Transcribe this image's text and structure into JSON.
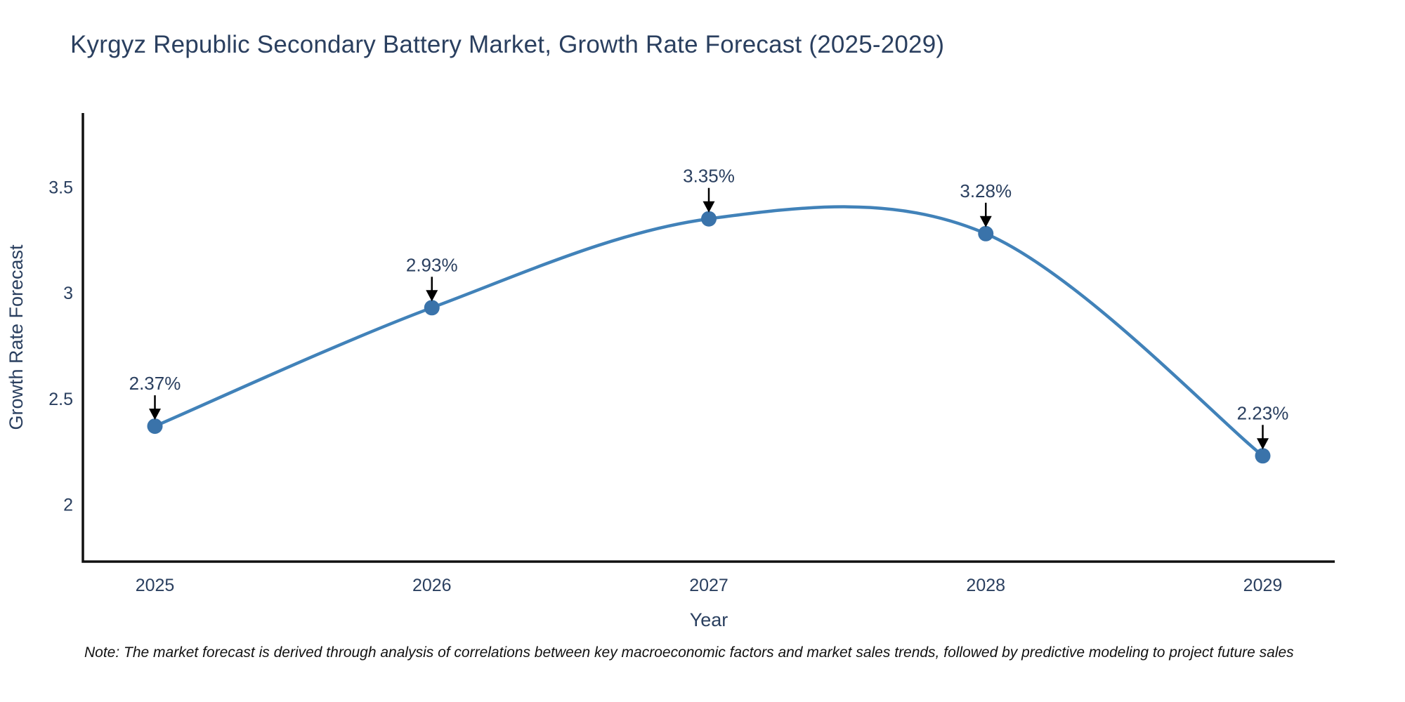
{
  "note": "Note: The market forecast is derived through analysis of correlations between key macroeconomic factors and market sales trends, followed by predictive modeling to project future sales",
  "chart_data": {
    "type": "line",
    "title": "Kyrgyz Republic Secondary Battery Market, Growth Rate Forecast (2025-2029)",
    "xlabel": "Year",
    "ylabel": "Growth Rate Forecast",
    "x": [
      2025,
      2026,
      2027,
      2028,
      2029
    ],
    "values": [
      2.37,
      2.93,
      3.35,
      3.28,
      2.23
    ],
    "point_labels": [
      "2.37%",
      "2.93%",
      "3.35%",
      "3.28%",
      "2.23%"
    ],
    "xticks": [
      2025,
      2026,
      2027,
      2028,
      2029
    ],
    "yticks": [
      2,
      2.5,
      3,
      3.5
    ],
    "xlim": [
      2024.74,
      2029.26
    ],
    "ylim": [
      1.73,
      3.85
    ],
    "grid": false,
    "legend": "none",
    "line_shape": "spline",
    "marker": "circle",
    "colors": {
      "line": "#4182b9",
      "marker": "#3a73aa",
      "axis": "#111111",
      "text": "#2a3f5f",
      "arrow": "#000000",
      "note": "#111111"
    }
  }
}
